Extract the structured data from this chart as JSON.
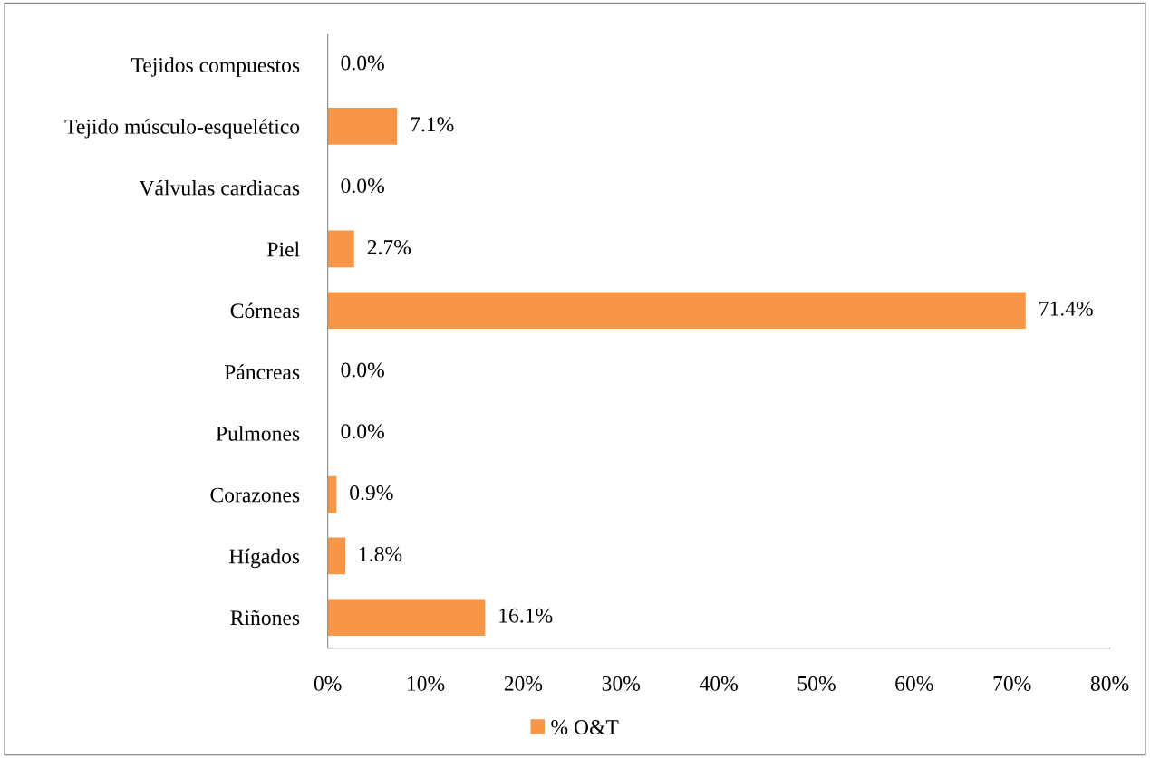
{
  "chart_data": {
    "type": "bar",
    "orientation": "horizontal",
    "categories": [
      "Tejidos compuestos",
      "Tejido músculo-esquelético",
      "Válvulas cardiacas",
      "Piel",
      "Córneas",
      "Páncreas",
      "Pulmones",
      "Corazones",
      "Hígados",
      "Riñones"
    ],
    "series": [
      {
        "name": "% O&T",
        "color": "#f79646",
        "values": [
          0.0,
          7.1,
          0.0,
          2.7,
          71.4,
          0.0,
          0.0,
          0.9,
          1.8,
          16.1
        ],
        "value_labels": [
          "0.0%",
          "7.1%",
          "0.0%",
          "2.7%",
          "71.4%",
          "0.0%",
          "0.0%",
          "0.9%",
          "1.8%",
          "16.1%"
        ]
      }
    ],
    "xlim": [
      0,
      80
    ],
    "xticks": [
      {
        "value": 0,
        "label": "0%"
      },
      {
        "value": 10,
        "label": "10%"
      },
      {
        "value": 20,
        "label": "20%"
      },
      {
        "value": 30,
        "label": "30%"
      },
      {
        "value": 40,
        "label": "40%"
      },
      {
        "value": 50,
        "label": "50%"
      },
      {
        "value": 60,
        "label": "60%"
      },
      {
        "value": 70,
        "label": "70%"
      },
      {
        "value": 80,
        "label": "80%"
      }
    ],
    "grid": false,
    "legend": "bottom"
  }
}
